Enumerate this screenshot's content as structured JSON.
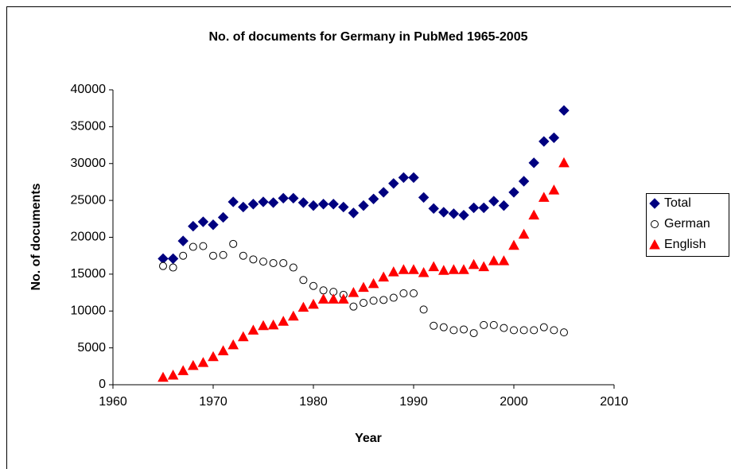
{
  "chart_data": {
    "type": "scatter",
    "title": "No. of documents for Germany in PubMed 1965-2005",
    "x_label": "Year",
    "y_label": "No. of documents",
    "xlim": [
      1960,
      2010
    ],
    "xticks": [
      1960,
      1970,
      1980,
      1990,
      2000,
      2010
    ],
    "ylim": [
      0,
      40000
    ],
    "yticks": [
      0,
      5000,
      10000,
      15000,
      20000,
      25000,
      30000,
      35000,
      40000
    ],
    "grid": false,
    "legend": "right",
    "x": [
      1965,
      1966,
      1967,
      1968,
      1969,
      1970,
      1971,
      1972,
      1973,
      1974,
      1975,
      1976,
      1977,
      1978,
      1979,
      1980,
      1981,
      1982,
      1983,
      1984,
      1985,
      1986,
      1987,
      1988,
      1989,
      1990,
      1991,
      1992,
      1993,
      1994,
      1995,
      1996,
      1997,
      1998,
      1999,
      2000,
      2001,
      2002,
      2003,
      2004,
      2005
    ],
    "series": [
      {
        "name": "Total",
        "color": "#000080",
        "marker": "diamond",
        "values": [
          17100,
          17100,
          19500,
          21500,
          22100,
          21700,
          22700,
          24800,
          24100,
          24500,
          24800,
          24700,
          25300,
          25300,
          24700,
          24300,
          24500,
          24500,
          24100,
          23300,
          24300,
          25200,
          26100,
          27300,
          28100,
          28100,
          25400,
          23900,
          23400,
          23200,
          23000,
          24000,
          24000,
          24900,
          24300,
          26100,
          27600,
          30100,
          33000,
          33500,
          37200
        ]
      },
      {
        "name": "German",
        "color": "#000000",
        "marker": "circle",
        "values": [
          16100,
          15900,
          17500,
          18700,
          18800,
          17500,
          17600,
          19100,
          17500,
          17000,
          16700,
          16500,
          16500,
          15900,
          14200,
          13400,
          12800,
          12600,
          12200,
          10600,
          11100,
          11400,
          11500,
          11800,
          12400,
          12400,
          10200,
          8000,
          7800,
          7400,
          7500,
          7000,
          8100,
          8100,
          7700,
          7400,
          7400,
          7400,
          7800,
          7400,
          7100
        ]
      },
      {
        "name": "English",
        "color": "#ff0000",
        "marker": "triangle",
        "values": [
          1000,
          1300,
          1900,
          2600,
          3000,
          3800,
          4600,
          5400,
          6500,
          7400,
          8000,
          8100,
          8600,
          9300,
          10500,
          10900,
          11600,
          11600,
          11600,
          12500,
          13200,
          13700,
          14600,
          15300,
          15600,
          15600,
          15200,
          16000,
          15500,
          15600,
          15600,
          16300,
          16000,
          16800,
          16800,
          18900,
          20400,
          23000,
          25400,
          26400,
          30100
        ]
      }
    ]
  }
}
